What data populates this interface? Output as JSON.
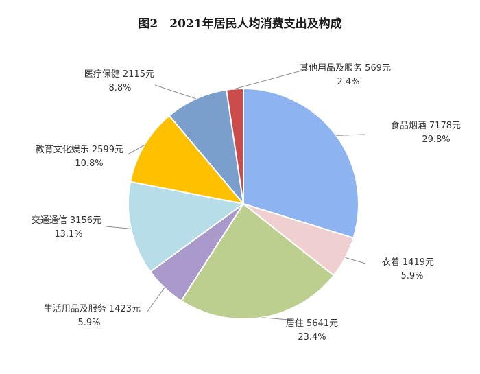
{
  "title": "图2　2021年居民人均消费支出及构成",
  "chart_data": {
    "type": "pie",
    "title": "图2　2021年居民人均消费支出及构成",
    "slices": [
      {
        "name": "食品烟酒",
        "value": 7178,
        "amount_label": "7178元",
        "percent": "29.8%",
        "color": "#8db4f0"
      },
      {
        "name": "衣着",
        "value": 1419,
        "amount_label": "1419元",
        "percent": "5.9%",
        "color": "#efcfd0"
      },
      {
        "name": "居住",
        "value": 5641,
        "amount_label": "5641元",
        "percent": "23.4%",
        "color": "#bccf8e"
      },
      {
        "name": "生活用品及服务",
        "value": 1423,
        "amount_label": "1423元",
        "percent": "5.9%",
        "color": "#a99acb"
      },
      {
        "name": "交通通信",
        "value": 3156,
        "amount_label": "3156元",
        "percent": "13.1%",
        "color": "#b7dde8"
      },
      {
        "name": "教育文化娱乐",
        "value": 2599,
        "amount_label": "2599元",
        "percent": "10.8%",
        "color": "#ffc000"
      },
      {
        "name": "医疗保健",
        "value": 2115,
        "amount_label": "2115元",
        "percent": "8.8%",
        "color": "#7b9fcd"
      },
      {
        "name": "其他用品及服务",
        "value": 569,
        "amount_label": "569元",
        "percent": "2.4%",
        "color": "#cc4b4b"
      }
    ],
    "start_angle_deg": 0,
    "direction": "clockwise"
  }
}
